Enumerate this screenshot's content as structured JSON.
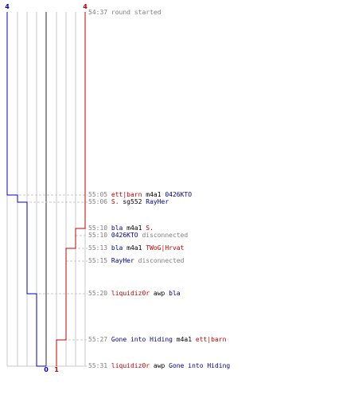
{
  "scores": {
    "blue_start": "4",
    "red_start": "4",
    "blue_end": "0",
    "red_end": "1"
  },
  "colors": {
    "red_team": "#c00000",
    "blue_team": "#0000cc",
    "grid": "#c8c8c8",
    "axis": "#707070",
    "time": "#808080"
  },
  "events": [
    {
      "time": "54:37",
      "parts": [
        {
          "text": "round started",
          "cls": "gray"
        }
      ]
    },
    {
      "time": "55:05",
      "parts": [
        {
          "text": "ett|barn",
          "cls": "red"
        },
        {
          "text": " m4a1 ",
          "cls": "blk"
        },
        {
          "text": "0426KTO",
          "cls": "blue"
        }
      ]
    },
    {
      "time": "55:06",
      "parts": [
        {
          "text": "S.",
          "cls": "red"
        },
        {
          "text": " sg552 ",
          "cls": "blk"
        },
        {
          "text": "RayHer",
          "cls": "blue"
        }
      ]
    },
    {
      "time": "55:10",
      "parts": [
        {
          "text": "bla",
          "cls": "blue"
        },
        {
          "text": " m4a1 ",
          "cls": "blk"
        },
        {
          "text": "S.",
          "cls": "red"
        }
      ]
    },
    {
      "time": "55:10",
      "parts": [
        {
          "text": "0426KTO",
          "cls": "blue"
        },
        {
          "text": " disconnected",
          "cls": "gray"
        }
      ]
    },
    {
      "time": "55:13",
      "parts": [
        {
          "text": "bla",
          "cls": "blue"
        },
        {
          "text": " m4a1 ",
          "cls": "blk"
        },
        {
          "text": "TWoG|Hrvat",
          "cls": "red"
        }
      ]
    },
    {
      "time": "55:15",
      "parts": [
        {
          "text": "RayHer",
          "cls": "blue"
        },
        {
          "text": " disconnected",
          "cls": "gray"
        }
      ]
    },
    {
      "time": "55:20",
      "parts": [
        {
          "text": "liquidiz0r",
          "cls": "red"
        },
        {
          "text": " awp ",
          "cls": "blk"
        },
        {
          "text": "bla",
          "cls": "blue"
        }
      ]
    },
    {
      "time": "55:27",
      "parts": [
        {
          "text": "Gone into Hiding",
          "cls": "blue"
        },
        {
          "text": " m4a1 ",
          "cls": "blk"
        },
        {
          "text": "ett|barn",
          "cls": "red"
        }
      ]
    },
    {
      "time": "55:31",
      "parts": [
        {
          "text": "liquidiz0r",
          "cls": "red"
        },
        {
          "text": " awp ",
          "cls": "blk"
        },
        {
          "text": "Gone into Hiding",
          "cls": "blue"
        }
      ]
    }
  ]
}
